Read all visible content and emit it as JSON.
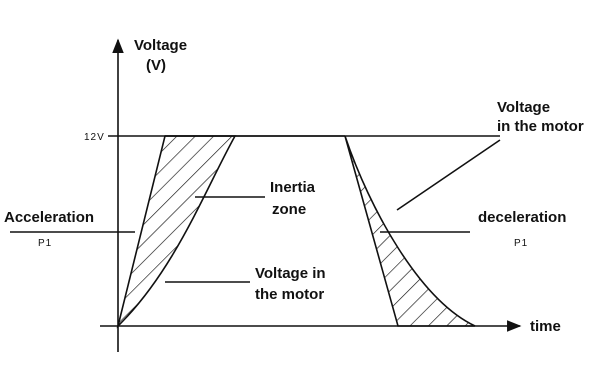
{
  "axes": {
    "y_label_line1": "Voltage",
    "y_label_line2": "(V)",
    "level": "12V",
    "x_label": "time"
  },
  "labels": {
    "acceleration": "Acceleration",
    "acceleration_sub": "P1",
    "inertia_line1": "Inertia",
    "inertia_line2": "zone",
    "voltage_left_line1": "Voltage in",
    "voltage_left_line2": "the motor",
    "voltage_right_line1": "Voltage",
    "voltage_right_line2": "in the motor",
    "deceleration": "deceleration",
    "deceleration_sub": "P1"
  }
}
